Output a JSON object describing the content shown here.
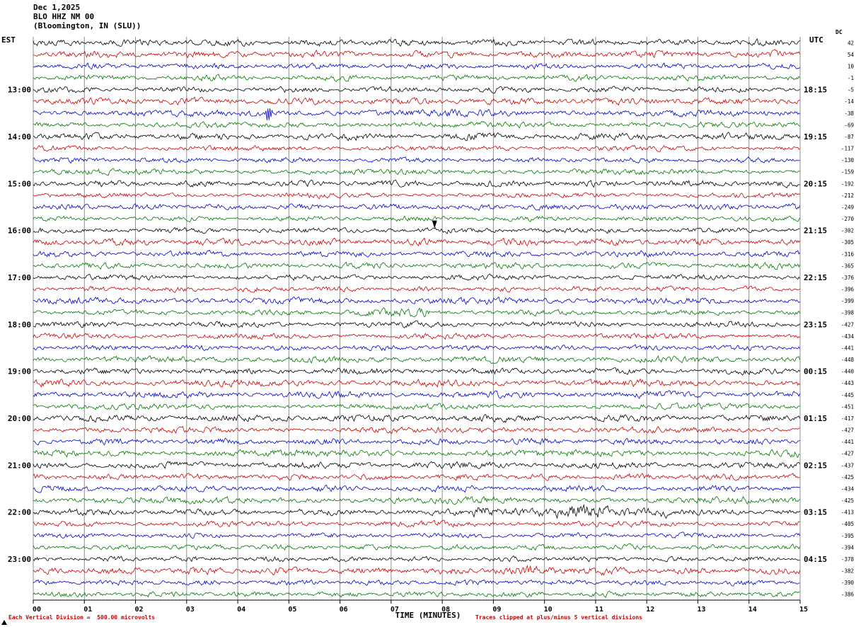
{
  "header": {
    "date": "Dec 1,2025",
    "station": "BLO HHZ NM 00",
    "location": "(Bloomington, IN (SLU))"
  },
  "axes": {
    "left_label": "EST",
    "right_label": "UTC",
    "dc_label": "DC"
  },
  "footer": {
    "x_title": "TIME (MINUTES)",
    "scale_note": "Each Vertical Division =  500.00 microvolts",
    "clip_note": "Traces clipped at plus/minus 5 vertical divisions"
  },
  "chart_data": {
    "type": "line",
    "subtype": "helicorder-seismogram",
    "title": "BLO HHZ NM 00 (Bloomington, IN (SLU)) Dec 1,2025",
    "xlabel": "TIME (MINUTES)",
    "x_range_minutes": [
      0,
      15
    ],
    "x_ticks": [
      "00",
      "01",
      "02",
      "03",
      "04",
      "05",
      "06",
      "07",
      "08",
      "09",
      "10",
      "11",
      "12",
      "13",
      "14",
      "15"
    ],
    "minutes_per_row": 15,
    "vertical_division_microvolts": 500.0,
    "clip_divisions": 5,
    "row_colors_cycle": [
      "#000000",
      "#cc0000",
      "#0000cc",
      "#007700"
    ],
    "rows": [
      {
        "dc": 42
      },
      {
        "dc": 54
      },
      {
        "dc": 10
      },
      {
        "dc": -1
      },
      {
        "est": "13:00",
        "utc": "18:15",
        "dc": -5
      },
      {
        "dc": -14
      },
      {
        "dc": -38,
        "spikes": [
          {
            "minute": 4.6,
            "height": 11
          }
        ]
      },
      {
        "dc": -69
      },
      {
        "est": "14:00",
        "utc": "19:15",
        "dc": -87
      },
      {
        "dc": -117
      },
      {
        "dc": -130
      },
      {
        "dc": -159
      },
      {
        "est": "15:00",
        "utc": "20:15",
        "dc": -192
      },
      {
        "dc": -212
      },
      {
        "dc": -249
      },
      {
        "dc": -270
      },
      {
        "est": "16:00",
        "utc": "21:15",
        "dc": -302
      },
      {
        "dc": -305
      },
      {
        "dc": -316
      },
      {
        "dc": -365
      },
      {
        "est": "17:00",
        "utc": "22:15",
        "dc": -376
      },
      {
        "dc": -396
      },
      {
        "dc": -399
      },
      {
        "dc": -398,
        "bursts": [
          {
            "start": 6.1,
            "end": 7.7,
            "mult": 1.6
          }
        ]
      },
      {
        "est": "18:00",
        "utc": "23:15",
        "dc": -427
      },
      {
        "dc": -434
      },
      {
        "dc": -441
      },
      {
        "dc": -448
      },
      {
        "est": "19:00",
        "utc": "00:15",
        "dc": -440
      },
      {
        "dc": -443
      },
      {
        "dc": -445
      },
      {
        "dc": -451
      },
      {
        "est": "20:00",
        "utc": "01:15",
        "dc": -417
      },
      {
        "dc": -427
      },
      {
        "dc": -441
      },
      {
        "dc": -427
      },
      {
        "est": "21:00",
        "utc": "02:15",
        "dc": -437
      },
      {
        "dc": -425
      },
      {
        "dc": -434
      },
      {
        "dc": -425
      },
      {
        "est": "22:00",
        "utc": "03:15",
        "dc": -413,
        "bursts": [
          {
            "start": 8.6,
            "end": 12.4,
            "mult": 2.1
          }
        ]
      },
      {
        "dc": -405
      },
      {
        "dc": -395
      },
      {
        "dc": -394
      },
      {
        "est": "23:00",
        "utc": "04:15",
        "dc": -378
      },
      {
        "dc": -382,
        "bursts": [
          {
            "start": 9.0,
            "end": 11.2,
            "mult": 1.5
          }
        ]
      },
      {
        "dc": -390
      },
      {
        "dc": -386
      }
    ],
    "markers": [
      {
        "row": 16,
        "minute": 7.85,
        "type": "event-arrow"
      }
    ]
  }
}
